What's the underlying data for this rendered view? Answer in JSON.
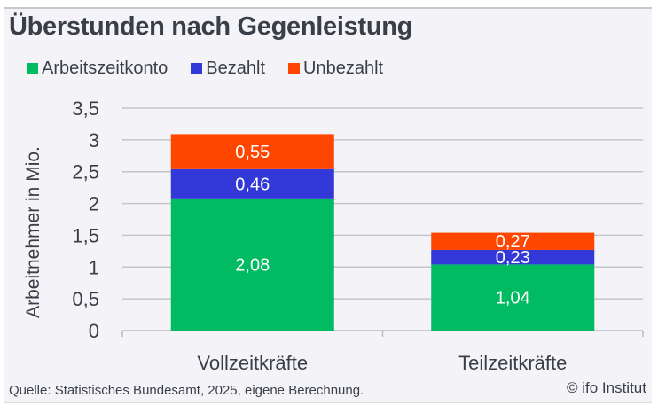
{
  "chart_data": {
    "type": "bar",
    "stacked": true,
    "title": "Überstunden nach Gegenleistung",
    "xlabel": "",
    "ylabel": "Arbeitnehmer in Mio.",
    "ylim": [
      0,
      3.5
    ],
    "yticks": [
      0,
      0.5,
      1,
      1.5,
      2,
      2.5,
      3,
      3.5
    ],
    "ytick_labels": [
      "0",
      "0,5",
      "1",
      "1,5",
      "2",
      "2,5",
      "3",
      "3,5"
    ],
    "grid": true,
    "legend_position": "top-left",
    "categories": [
      "Vollzeitkräfte",
      "Teilzeitkräfte"
    ],
    "series": [
      {
        "name": "Arbeitszeitkonto",
        "color": "#00bb62",
        "values": [
          2.08,
          1.04
        ],
        "labels": [
          "2,08",
          "1,04"
        ]
      },
      {
        "name": "Bezahlt",
        "color": "#3338d8",
        "values": [
          0.46,
          0.23
        ],
        "labels": [
          "0,46",
          "0,23"
        ]
      },
      {
        "name": "Unbezahlt",
        "color": "#fe4600",
        "values": [
          0.55,
          0.27
        ],
        "labels": [
          "0,55",
          "0,27"
        ]
      }
    ]
  },
  "source": "Quelle: Statistisches Bundesamt, 2025, eigene Berechnung.",
  "copyright": "© ifo Institut"
}
